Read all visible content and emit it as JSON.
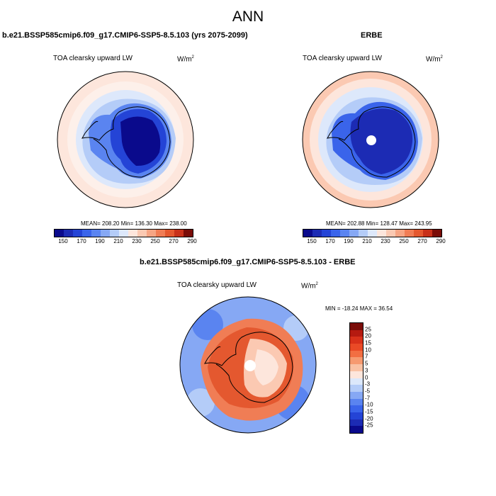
{
  "title": "ANN",
  "panels": {
    "model": {
      "title": "b.e21.BSSP585cmip6.f09_g17.CMIP6-SSP5-8.5.103 (yrs 2075-2099)",
      "variable": "TOA clearsky upward LW",
      "unit_base": "W/m",
      "unit_exp": "2",
      "mean_text": "MEAN= 208.20",
      "min_text": "Min= 136.30",
      "max_text": "Max= 238.00"
    },
    "obs": {
      "title": "ERBE",
      "variable": "TOA clearsky upward LW",
      "unit_base": "W/m",
      "unit_exp": "2",
      "mean_text": "MEAN= 202.88",
      "min_text": "Min= 128.47",
      "max_text": "Max= 243.95"
    },
    "diff": {
      "title": "b.e21.BSSP585cmip6.f09_g17.CMIP6-SSP5-8.5.103 - ERBE",
      "variable": "TOA clearsky upward LW",
      "unit_base": "W/m",
      "unit_exp": "2",
      "minmax_text": "MIN = -18.24 MAX =  36.54"
    }
  },
  "colorbar_main": {
    "colors": [
      "#0a0a8c",
      "#1c2bb4",
      "#2444d6",
      "#3a64ea",
      "#5a84f0",
      "#86a8f4",
      "#b4ccf8",
      "#dde8fb",
      "#fde6dc",
      "#fbc9b2",
      "#f6a584",
      "#f07d55",
      "#e4582f",
      "#c8311a",
      "#7a0c08"
    ],
    "labels": [
      "150",
      "170",
      "190",
      "210",
      "230",
      "250",
      "270",
      "290"
    ]
  },
  "colorbar_diff": {
    "colors": [
      "#7a0c08",
      "#b51a10",
      "#d8311a",
      "#ea4a26",
      "#f26e42",
      "#f69a70",
      "#f9c2a4",
      "#fde6dc",
      "#dce8fb",
      "#b4ccf8",
      "#86a8f4",
      "#5a84f0",
      "#3a64ea",
      "#2444d6",
      "#1c2bb4",
      "#0a0a8c"
    ],
    "labels": [
      "25",
      "20",
      "15",
      "10",
      "7",
      "5",
      "3",
      "0",
      "-3",
      "-5",
      "-7",
      "-10",
      "-15",
      "-20",
      "-25"
    ]
  }
}
